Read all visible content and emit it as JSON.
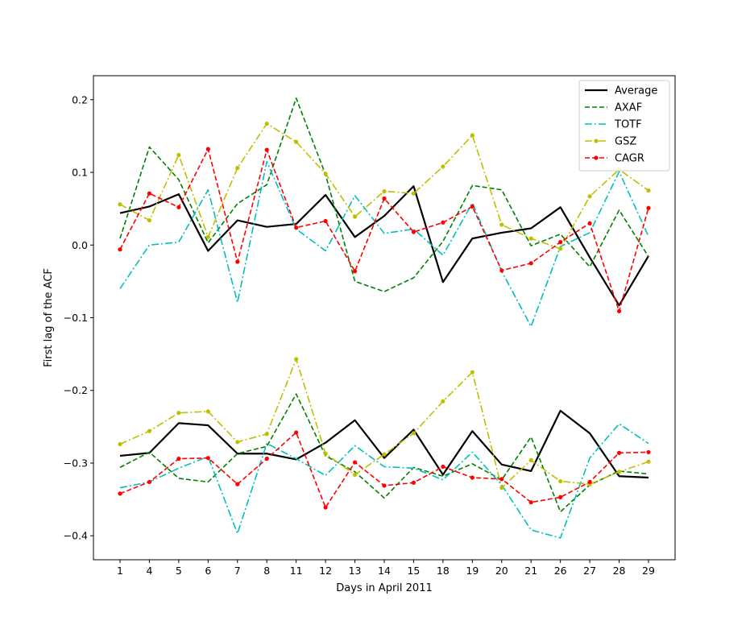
{
  "chart_data": {
    "type": "line",
    "xlabel": "Days in April 2011",
    "ylabel": "First lag of the ACF",
    "categories": [
      "1",
      "4",
      "5",
      "6",
      "7",
      "8",
      "11",
      "12",
      "13",
      "14",
      "15",
      "18",
      "19",
      "20",
      "21",
      "26",
      "27",
      "28",
      "29"
    ],
    "y_ticks": [
      "−0.4",
      "−0.3",
      "−0.2",
      "−0.1",
      "0.0",
      "0.1",
      "0.2"
    ],
    "y_tick_values": [
      -0.4,
      -0.3,
      -0.2,
      -0.1,
      0.0,
      0.1,
      0.2
    ],
    "ylim": [
      -0.433,
      0.233
    ],
    "legend_position": "top-right",
    "series": [
      {
        "name": "Average",
        "color": "#000000",
        "style": "solid",
        "marker": "none",
        "groups": [
          [
            0.044,
            0.053,
            0.07,
            -0.008,
            0.034,
            0.025,
            0.029,
            0.069,
            0.011,
            0.04,
            0.081,
            -0.051,
            0.009,
            0.017,
            0.023,
            0.052,
            -0.017,
            -0.083,
            -0.015
          ],
          [
            -0.29,
            -0.286,
            -0.245,
            -0.248,
            -0.287,
            -0.287,
            -0.295,
            -0.272,
            -0.241,
            -0.293,
            -0.254,
            -0.316,
            -0.256,
            -0.302,
            -0.311,
            -0.228,
            -0.259,
            -0.318,
            -0.32
          ]
        ]
      },
      {
        "name": "AXAF",
        "color": "#008000",
        "style": "dashed",
        "marker": "none",
        "groups": [
          [
            0.009,
            0.135,
            0.09,
            0.003,
            0.057,
            0.083,
            0.202,
            0.097,
            -0.05,
            -0.064,
            -0.045,
            0.005,
            0.082,
            0.076,
            -0.001,
            0.015,
            -0.03,
            0.048,
            -0.016
          ],
          [
            -0.306,
            -0.285,
            -0.321,
            -0.326,
            -0.287,
            -0.277,
            -0.205,
            -0.29,
            -0.312,
            -0.348,
            -0.306,
            -0.318,
            -0.301,
            -0.323,
            -0.264,
            -0.367,
            -0.33,
            -0.311,
            -0.315
          ]
        ]
      },
      {
        "name": "TOTF",
        "color": "#00bfbf",
        "style": "dashdot",
        "marker": "none",
        "groups": [
          [
            -0.06,
            0.0,
            0.004,
            0.076,
            -0.079,
            0.115,
            0.022,
            -0.008,
            0.068,
            0.016,
            0.022,
            -0.014,
            0.058,
            -0.036,
            -0.112,
            -0.002,
            0.017,
            0.101,
            0.012
          ],
          [
            -0.334,
            -0.326,
            -0.307,
            -0.291,
            -0.397,
            -0.273,
            -0.294,
            -0.317,
            -0.276,
            -0.305,
            -0.307,
            -0.323,
            -0.285,
            -0.33,
            -0.392,
            -0.403,
            -0.293,
            -0.246,
            -0.273
          ]
        ]
      },
      {
        "name": "GSZ",
        "color": "#bfbf00",
        "style": "dashdot",
        "marker": "dot",
        "groups": [
          [
            0.056,
            0.034,
            0.124,
            0.011,
            0.106,
            0.167,
            0.142,
            0.098,
            0.039,
            0.074,
            0.071,
            0.108,
            0.151,
            0.028,
            0.009,
            -0.005,
            0.067,
            0.104,
            0.075
          ],
          [
            -0.274,
            -0.256,
            -0.231,
            -0.229,
            -0.271,
            -0.26,
            -0.157,
            -0.287,
            -0.316,
            -0.288,
            -0.259,
            -0.215,
            -0.175,
            -0.334,
            -0.296,
            -0.325,
            -0.329,
            -0.312,
            -0.298
          ]
        ]
      },
      {
        "name": "CAGR",
        "color": "#ff0000",
        "style": "dashed",
        "marker": "dot",
        "groups": [
          [
            -0.006,
            0.071,
            0.052,
            0.132,
            -0.023,
            0.131,
            0.024,
            0.033,
            -0.036,
            0.064,
            0.018,
            0.031,
            0.053,
            -0.035,
            -0.025,
            0.004,
            0.03,
            -0.091,
            0.051
          ],
          [
            -0.342,
            -0.326,
            -0.294,
            -0.293,
            -0.329,
            -0.294,
            -0.258,
            -0.361,
            -0.299,
            -0.331,
            -0.327,
            -0.305,
            -0.32,
            -0.322,
            -0.354,
            -0.347,
            -0.326,
            -0.286,
            -0.285
          ]
        ]
      }
    ]
  }
}
